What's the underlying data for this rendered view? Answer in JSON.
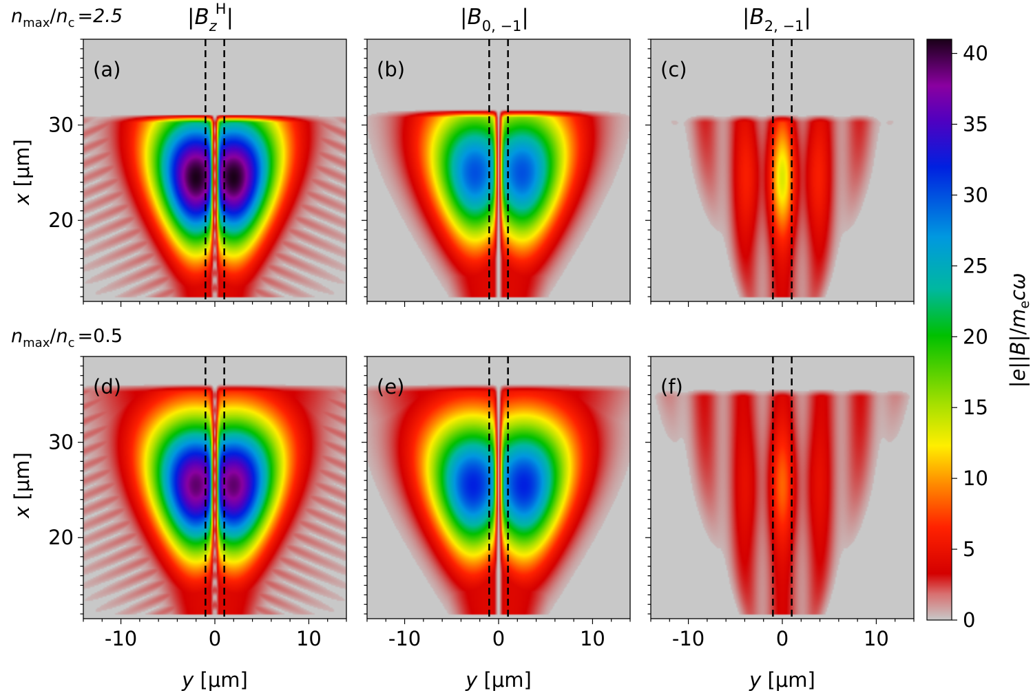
{
  "figure": {
    "row_labels": [
      {
        "num": "n",
        "num_sub": "max",
        "den": "n",
        "den_sub": "c",
        "eq": "=",
        "value": "2.5"
      },
      {
        "num": "n",
        "num_sub": "max",
        "den": "n",
        "den_sub": "c",
        "eq": "=",
        "value": "0.5"
      }
    ],
    "column_titles": [
      {
        "base": "B",
        "sub": "z",
        "sup": "H"
      },
      {
        "base": "B",
        "sub": "0, −1",
        "sup": ""
      },
      {
        "base": "B",
        "sub": "2, −1",
        "sup": ""
      }
    ],
    "panel_labels": [
      "(a)",
      "(b)",
      "(c)",
      "(d)",
      "(e)",
      "(f)"
    ],
    "xaxis_label": {
      "var": "y",
      "unit": "[μm]"
    },
    "yaxis_label": {
      "var": "x",
      "unit": "[μm]"
    },
    "colorbar_label": {
      "a": "|",
      "e": "e",
      "b": "||",
      "B": "B",
      "c": "|/",
      "m": "m",
      "msub": "e",
      "cw": "cω"
    }
  },
  "chart_data": {
    "type": "heatmap",
    "xlim": [
      -14,
      14
    ],
    "ylim": [
      11.5,
      39
    ],
    "x_ticks": [
      -10,
      0,
      10
    ],
    "x_tick_labels": [
      "-10",
      "0",
      "10"
    ],
    "y_ticks": [
      20,
      30
    ],
    "y_tick_labels": [
      "20",
      "30"
    ],
    "dashed_lines_y": [
      -1,
      1
    ],
    "colorbar": {
      "min": 0,
      "max": 41,
      "ticks": [
        0,
        5,
        10,
        15,
        20,
        25,
        30,
        35,
        40
      ],
      "tick_labels": [
        "0",
        "5",
        "10",
        "15",
        "20",
        "25",
        "30",
        "35",
        "40"
      ],
      "colormap": "nipy_spectral_reversed",
      "stops": [
        "#c8c8c8",
        "#d40000",
        "#ff2200",
        "#ff8c00",
        "#ffee00",
        "#a8e000",
        "#00c000",
        "#00b8a0",
        "#0098e0",
        "#0020e0",
        "#5000c0",
        "#8a00a0",
        "#1a0018"
      ]
    },
    "panels": [
      {
        "id": "a",
        "peak": 41,
        "lobe_y": 2.0,
        "lobe_x": 24.5,
        "top_x": 30.5
      },
      {
        "id": "b",
        "peak": 30,
        "lobe_y": 2.5,
        "lobe_x": 25,
        "top_x": 31
      },
      {
        "id": "c",
        "peak": 10,
        "lobe_y": 1.0,
        "lobe_x": 24.5,
        "top_x": 30.5
      },
      {
        "id": "d",
        "peak": 39,
        "lobe_y": 2.0,
        "lobe_x": 25.5,
        "top_x": 35.5
      },
      {
        "id": "e",
        "peak": 32,
        "lobe_y": 2.7,
        "lobe_x": 25.5,
        "top_x": 35.5
      },
      {
        "id": "f",
        "peak": 5,
        "lobe_y": 1.0,
        "lobe_x": 25.5,
        "top_x": 35
      }
    ]
  }
}
